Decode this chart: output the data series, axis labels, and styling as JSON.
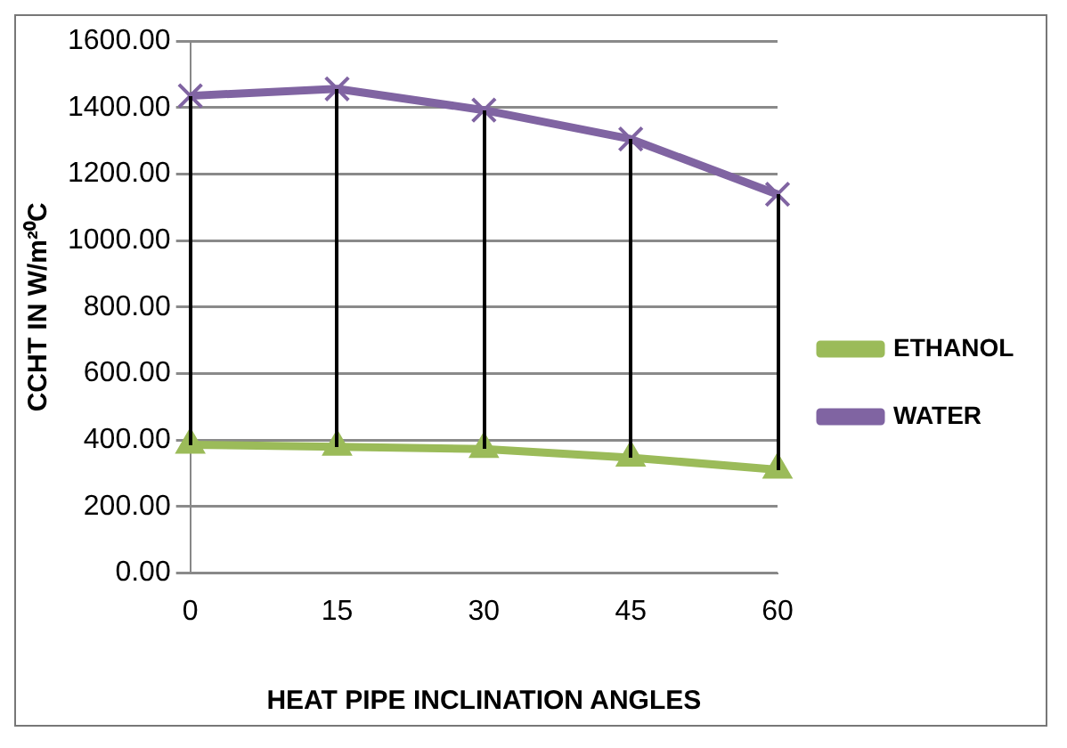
{
  "chart_data": {
    "type": "line",
    "xlabel": "HEAT PIPE INCLINATION ANGLES",
    "ylabel": "CCHT IN W/m²⁰C",
    "categories": [
      "0",
      "15",
      "30",
      "45",
      "60"
    ],
    "series": [
      {
        "name": "ETHANOL",
        "color": "#9bbb59",
        "marker": "triangle",
        "values": [
          386,
          380,
          373,
          347,
          311
        ]
      },
      {
        "name": "WATER",
        "color": "#8064a2",
        "marker": "cross",
        "values": [
          1435,
          1456,
          1392,
          1305,
          1139
        ]
      }
    ],
    "ylim": [
      0,
      1600
    ],
    "yticks": [
      {
        "value": 0,
        "label": "0.00"
      },
      {
        "value": 200,
        "label": "200.00"
      },
      {
        "value": 400,
        "label": "400.00"
      },
      {
        "value": 600,
        "label": "600.00"
      },
      {
        "value": 800,
        "label": "800.00"
      },
      {
        "value": 1000,
        "label": "1000.00"
      },
      {
        "value": 1200,
        "label": "1200.00"
      },
      {
        "value": 1400,
        "label": "1400.00"
      },
      {
        "value": 1600,
        "label": "1600.00"
      }
    ],
    "grid": "y",
    "legend": "right"
  }
}
